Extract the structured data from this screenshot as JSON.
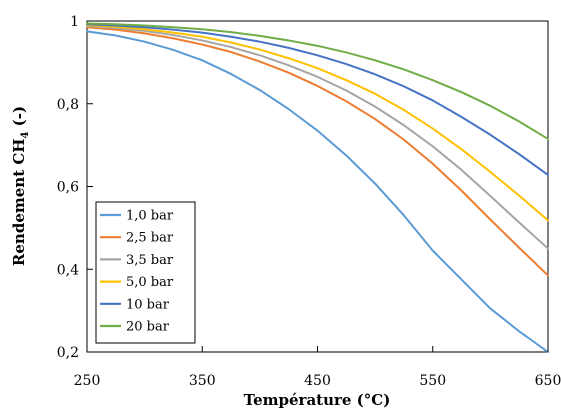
{
  "chart_data": {
    "type": "line",
    "xlabel": "Température (°C)",
    "ylabel": {
      "main": "Rendement CH",
      "subscript": "4",
      "suffix": " (-)"
    },
    "xlim": [
      250,
      650
    ],
    "ylim": [
      0.2,
      1.0
    ],
    "xticks": [
      250,
      350,
      450,
      550,
      650
    ],
    "xtick_labels": [
      "250",
      "350",
      "450",
      "550",
      "650"
    ],
    "yticks": [
      0.2,
      0.4,
      0.6,
      0.8,
      1.0
    ],
    "ytick_labels": [
      "0,2",
      "0,4",
      "0,6",
      "0,8",
      "1"
    ],
    "grid": false,
    "legend_position": "bottom-left",
    "series": [
      {
        "name": "1,0 bar",
        "color": "#5B9BD5",
        "x": [
          250,
          275,
          300,
          325,
          350,
          375,
          400,
          425,
          450,
          475,
          500,
          525,
          550,
          575,
          600,
          625,
          650
        ],
        "y": [
          0.975,
          0.965,
          0.95,
          0.93,
          0.905,
          0.872,
          0.833,
          0.787,
          0.735,
          0.675,
          0.607,
          0.53,
          0.445,
          0.375,
          0.305,
          0.25,
          0.2
        ]
      },
      {
        "name": "2,5 bar",
        "color": "#ED7D31",
        "x": [
          250,
          275,
          300,
          325,
          350,
          375,
          400,
          425,
          450,
          475,
          500,
          525,
          550,
          575,
          600,
          625,
          650
        ],
        "y": [
          0.985,
          0.979,
          0.97,
          0.958,
          0.943,
          0.925,
          0.902,
          0.875,
          0.843,
          0.806,
          0.763,
          0.713,
          0.655,
          0.59,
          0.52,
          0.452,
          0.385
        ]
      },
      {
        "name": "3,5 bar",
        "color": "#A5A5A5",
        "x": [
          250,
          275,
          300,
          325,
          350,
          375,
          400,
          425,
          450,
          475,
          500,
          525,
          550,
          575,
          600,
          625,
          650
        ],
        "y": [
          0.988,
          0.983,
          0.976,
          0.966,
          0.953,
          0.937,
          0.917,
          0.893,
          0.865,
          0.832,
          0.793,
          0.748,
          0.697,
          0.64,
          0.577,
          0.513,
          0.45
        ]
      },
      {
        "name": "5,0 bar",
        "color": "#FFC000",
        "x": [
          250,
          275,
          300,
          325,
          350,
          375,
          400,
          425,
          450,
          475,
          500,
          525,
          550,
          575,
          600,
          625,
          650
        ],
        "y": [
          0.99,
          0.986,
          0.98,
          0.972,
          0.962,
          0.948,
          0.931,
          0.91,
          0.886,
          0.857,
          0.824,
          0.785,
          0.74,
          0.69,
          0.635,
          0.578,
          0.518
        ]
      },
      {
        "name": "10 bar",
        "color": "#4472C4",
        "x": [
          250,
          275,
          300,
          325,
          350,
          375,
          400,
          425,
          450,
          475,
          500,
          525,
          550,
          575,
          600,
          625,
          650
        ],
        "y": [
          0.992,
          0.989,
          0.985,
          0.979,
          0.972,
          0.962,
          0.95,
          0.935,
          0.917,
          0.896,
          0.871,
          0.842,
          0.808,
          0.768,
          0.725,
          0.678,
          0.628
        ]
      },
      {
        "name": "20 bar",
        "color": "#70AD47",
        "x": [
          250,
          275,
          300,
          325,
          350,
          375,
          400,
          425,
          450,
          475,
          500,
          525,
          550,
          575,
          600,
          625,
          650
        ],
        "y": [
          0.994,
          0.992,
          0.989,
          0.985,
          0.98,
          0.973,
          0.964,
          0.953,
          0.94,
          0.924,
          0.905,
          0.883,
          0.857,
          0.828,
          0.795,
          0.757,
          0.715
        ]
      }
    ]
  }
}
